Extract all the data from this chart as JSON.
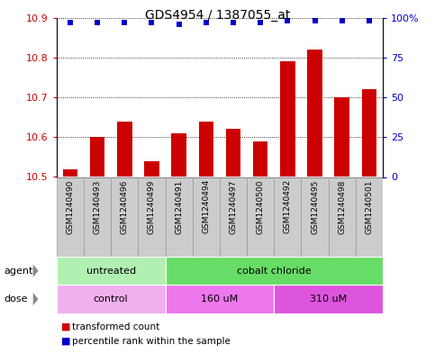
{
  "title": "GDS4954 / 1387055_at",
  "samples": [
    "GSM1240490",
    "GSM1240493",
    "GSM1240496",
    "GSM1240499",
    "GSM1240491",
    "GSM1240494",
    "GSM1240497",
    "GSM1240500",
    "GSM1240492",
    "GSM1240495",
    "GSM1240498",
    "GSM1240501"
  ],
  "bar_values": [
    10.52,
    10.6,
    10.64,
    10.54,
    10.61,
    10.64,
    10.62,
    10.59,
    10.79,
    10.82,
    10.7,
    10.72
  ],
  "percentile_values": [
    97,
    97,
    97,
    97,
    96,
    97,
    97,
    97,
    98,
    98,
    98,
    98
  ],
  "bar_color": "#cc0000",
  "percentile_color": "#0000cc",
  "ylim_left": [
    10.5,
    10.9
  ],
  "ylim_right": [
    0,
    100
  ],
  "yticks_left": [
    10.5,
    10.6,
    10.7,
    10.8,
    10.9
  ],
  "yticks_right": [
    0,
    25,
    50,
    75,
    100
  ],
  "ytick_labels_right": [
    "0",
    "25",
    "50",
    "75",
    "100%"
  ],
  "agent_groups": [
    {
      "label": "untreated",
      "start": 0,
      "end": 4,
      "color": "#b2f0b2"
    },
    {
      "label": "cobalt chloride",
      "start": 4,
      "end": 12,
      "color": "#66dd66"
    }
  ],
  "dose_groups": [
    {
      "label": "control",
      "start": 0,
      "end": 4,
      "color": "#f0b0f0"
    },
    {
      "label": "160 uM",
      "start": 4,
      "end": 8,
      "color": "#ee77ee"
    },
    {
      "label": "310 uM",
      "start": 8,
      "end": 12,
      "color": "#dd55dd"
    }
  ],
  "sample_box_color": "#cccccc",
  "sample_box_edge": "#999999",
  "plot_bg": "#ffffff",
  "fig_bg": "#ffffff",
  "grid_color": "#000000",
  "grid_style": "dotted",
  "grid_lw": 0.6
}
